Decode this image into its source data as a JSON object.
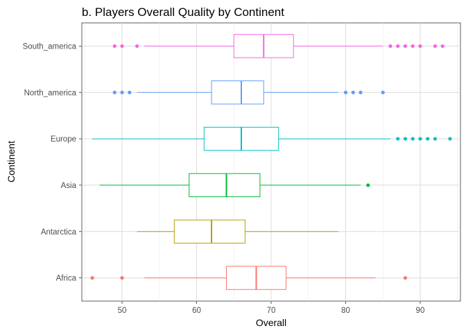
{
  "chart_data": {
    "type": "boxplot",
    "orientation": "horizontal",
    "title": "b. Players Overall Quality by Continent",
    "xlabel": "Overall",
    "ylabel": "Continent",
    "xlim": [
      44.6,
      95.4
    ],
    "xticks": [
      50,
      60,
      70,
      80,
      90
    ],
    "grid": true,
    "legend": "none",
    "categories": [
      "Africa",
      "Antarctica",
      "Asia",
      "Europe",
      "North_america",
      "South_america"
    ],
    "series": [
      {
        "category": "Africa",
        "color": "#F8766D",
        "whisker_low": 53,
        "q1": 64,
        "median": 68,
        "q3": 72,
        "whisker_high": 84,
        "outliers": [
          46,
          50,
          88
        ]
      },
      {
        "category": "Antarctica",
        "color": "#B79F00",
        "whisker_low": 52,
        "q1": 57,
        "median": 62,
        "q3": 66.5,
        "whisker_high": 79,
        "outliers": []
      },
      {
        "category": "Asia",
        "color": "#00BA38",
        "whisker_low": 47,
        "q1": 59,
        "median": 64,
        "q3": 68.5,
        "whisker_high": 82,
        "outliers": [
          83
        ]
      },
      {
        "category": "Europe",
        "color": "#00BFC4",
        "whisker_low": 46,
        "q1": 61,
        "median": 66,
        "q3": 71,
        "whisker_high": 86,
        "outliers": [
          87,
          88,
          89,
          90,
          91,
          92,
          94
        ]
      },
      {
        "category": "North_america",
        "color": "#619CFF",
        "whisker_low": 52,
        "q1": 62,
        "median": 66,
        "q3": 69,
        "whisker_high": 79,
        "outliers": [
          49,
          50,
          51,
          80,
          81,
          82,
          85
        ]
      },
      {
        "category": "South_america",
        "color": "#F564E3",
        "whisker_low": 53,
        "q1": 65,
        "median": 69,
        "q3": 73,
        "whisker_high": 85,
        "outliers": [
          49,
          50,
          52,
          86,
          87,
          88,
          89,
          90,
          92,
          93
        ]
      }
    ]
  }
}
